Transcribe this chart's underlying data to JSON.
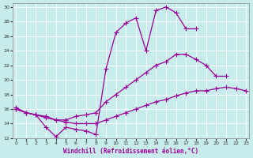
{
  "xlabel": "Windchill (Refroidissement éolien,°C)",
  "bg_color": "#c8ecec",
  "line_color": "#990099",
  "xlim": [
    -0.3,
    23.3
  ],
  "ylim": [
    12,
    30.5
  ],
  "yticks": [
    12,
    14,
    16,
    18,
    20,
    22,
    24,
    26,
    28,
    30
  ],
  "xticks": [
    0,
    1,
    2,
    3,
    4,
    5,
    6,
    7,
    8,
    9,
    10,
    11,
    12,
    13,
    14,
    15,
    16,
    17,
    18,
    19,
    20,
    21,
    22,
    23
  ],
  "line1_x": [
    0,
    1,
    2,
    3,
    4,
    5,
    6,
    7,
    8,
    9,
    10,
    11,
    12,
    13,
    14,
    15,
    16,
    17,
    18
  ],
  "line1_y": [
    16.2,
    15.5,
    15.2,
    13.5,
    12.2,
    13.5,
    13.2,
    13.0,
    12.5,
    21.5,
    26.5,
    27.8,
    28.5,
    24.0,
    29.5,
    30.0,
    29.2,
    27.0,
    27.0
  ],
  "line2_x": [
    0,
    1,
    2,
    3,
    4,
    5,
    6,
    7,
    8,
    9,
    10,
    11,
    12,
    13,
    14,
    15,
    16,
    17,
    18,
    19,
    20,
    21
  ],
  "line2_y": [
    16.0,
    15.5,
    15.2,
    15.0,
    14.5,
    14.5,
    15.0,
    15.2,
    15.5,
    17.0,
    18.0,
    19.0,
    20.0,
    21.0,
    22.0,
    22.5,
    23.5,
    23.5,
    22.8,
    22.0,
    20.5,
    20.5
  ],
  "line3_x": [
    0,
    1,
    2,
    3,
    4,
    5,
    6,
    7,
    8,
    9,
    10,
    11,
    12,
    13,
    14,
    15,
    16,
    17,
    18,
    19,
    20,
    21,
    22,
    23
  ],
  "line3_y": [
    16.0,
    15.5,
    15.2,
    14.8,
    14.5,
    14.2,
    14.0,
    14.0,
    14.0,
    14.5,
    15.0,
    15.5,
    16.0,
    16.5,
    17.0,
    17.3,
    17.8,
    18.2,
    18.5,
    18.5,
    18.8,
    19.0,
    18.8,
    18.5
  ]
}
